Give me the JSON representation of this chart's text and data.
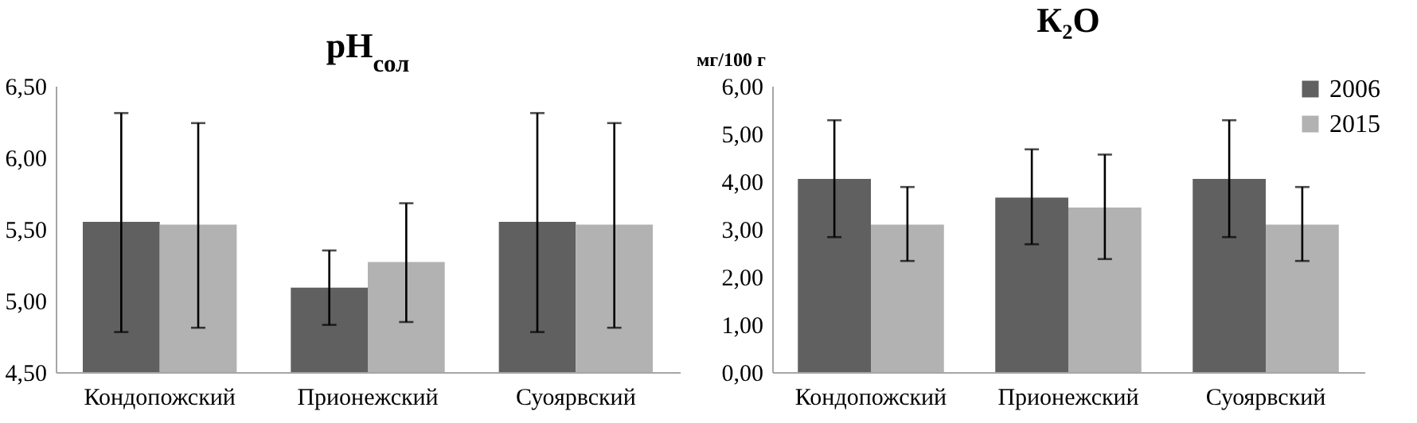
{
  "chart_data": [
    {
      "type": "bar",
      "title": "pH$_{сол}$",
      "categories": [
        "Кондопожский",
        "Прионежский",
        "Суоярвский"
      ],
      "series": [
        {
          "color": "#606060",
          "values": [
            5.55,
            5.09,
            5.55
          ],
          "errors": [
            [
              4.78,
              6.31
            ],
            [
              4.83,
              5.35
            ],
            [
              4.78,
              6.31
            ]
          ]
        },
        {
          "color": "#b2b2b2",
          "values": [
            5.53,
            5.27,
            5.53
          ],
          "errors": [
            [
              4.81,
              6.24
            ],
            [
              4.85,
              5.68
            ],
            [
              4.81,
              6.24
            ]
          ]
        }
      ],
      "ylim": [
        4.5,
        6.5
      ],
      "yticks": [
        {
          "value": 4.5,
          "label": "4,50"
        },
        {
          "value": 5,
          "label": "5,00"
        },
        {
          "value": 5.5,
          "label": "5,50"
        },
        {
          "value": 6,
          "label": "6,00"
        },
        {
          "value": 6.5,
          "label": "6,50"
        }
      ],
      "grid": false
    },
    {
      "type": "bar",
      "title": "К₂O",
      "ylabel": "мг/100 г",
      "categories": [
        "Кондопожский",
        "Прионежский",
        "Суоярвский"
      ],
      "series": [
        {
          "name": "2006",
          "color": "#606060",
          "values": [
            4.05,
            3.66,
            4.05
          ],
          "errors": [
            [
              2.83,
              5.28
            ],
            [
              2.68,
              4.67
            ],
            [
              2.83,
              5.28
            ]
          ]
        },
        {
          "name": "2015",
          "color": "#b2b2b2",
          "values": [
            3.09,
            3.45,
            3.09
          ],
          "errors": [
            [
              2.33,
              3.88
            ],
            [
              2.37,
              4.56
            ],
            [
              2.33,
              3.88
            ]
          ]
        }
      ],
      "ylim": [
        0,
        6
      ],
      "yticks": [
        {
          "value": 0,
          "label": "0,00"
        },
        {
          "value": 1,
          "label": "1,00"
        },
        {
          "value": 2,
          "label": "2,00"
        },
        {
          "value": 3,
          "label": "3,00"
        },
        {
          "value": 4,
          "label": "4,00"
        },
        {
          "value": 5,
          "label": "5,00"
        },
        {
          "value": 6,
          "label": "6,00"
        }
      ],
      "grid": false,
      "legend": "top right"
    }
  ]
}
